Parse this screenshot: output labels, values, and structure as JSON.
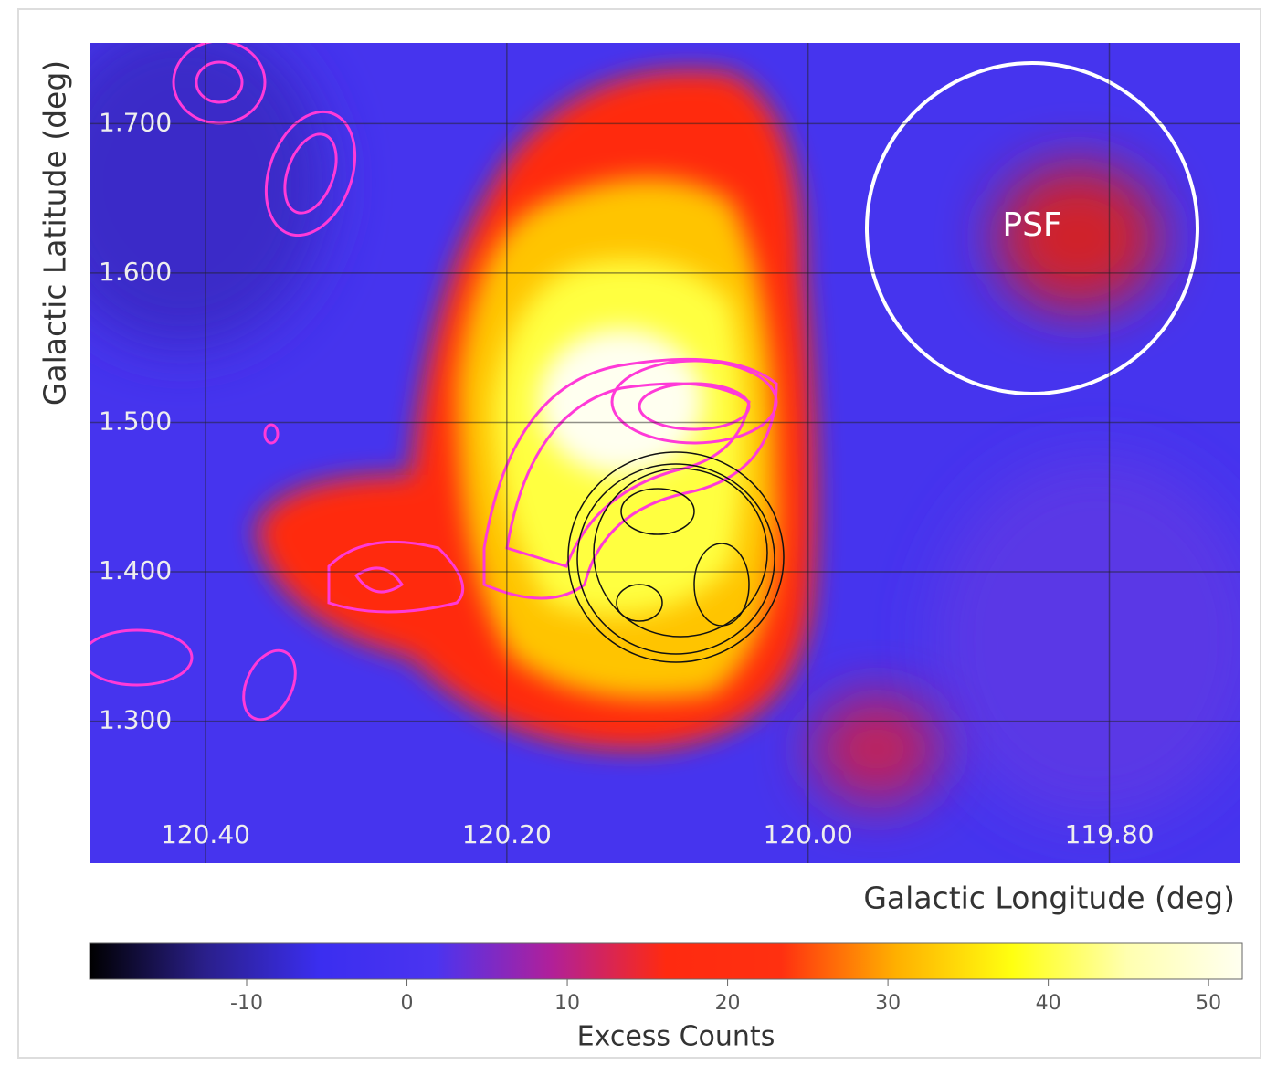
{
  "chart_data": {
    "type": "skymap",
    "xlabel": "Galactic Longitude (deg)",
    "ylabel": "Galactic Latitude (deg)",
    "xlim": [
      120.477,
      119.713
    ],
    "xticks": [
      {
        "value": 120.4,
        "label": "120.40"
      },
      {
        "value": 120.2,
        "label": "120.20"
      },
      {
        "value": 120.0,
        "label": "120.00"
      },
      {
        "value": 119.8,
        "label": "119.80"
      }
    ],
    "ylim": [
      1.205,
      1.754
    ],
    "yticks": [
      {
        "value": 1.3,
        "label": "1.300"
      },
      {
        "value": 1.4,
        "label": "1.400"
      },
      {
        "value": 1.5,
        "label": "1.500"
      },
      {
        "value": 1.6,
        "label": "1.600"
      },
      {
        "value": 1.7,
        "label": "1.700"
      }
    ],
    "grid": true,
    "annotation": "PSF",
    "colorbar": {
      "label": "Excess Counts",
      "lim": [
        -19.8,
        52.1
      ],
      "ticks": [
        -10,
        0,
        10,
        20,
        30,
        40,
        50
      ],
      "colors": [
        "#000000",
        "#2a1f8a",
        "#3b2ef0",
        "#4b34f0",
        "#b0209a",
        "#ff2a10",
        "#ff3010",
        "#ffb000",
        "#ffff10",
        "#ffffb0",
        "#fffff0"
      ]
    }
  }
}
